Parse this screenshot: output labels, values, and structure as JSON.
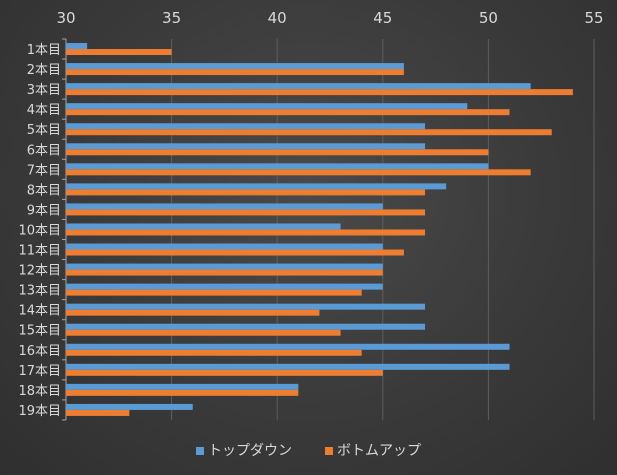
{
  "chart_data": {
    "type": "bar",
    "orientation": "horizontal",
    "categories": [
      "1本目",
      "2本目",
      "3本目",
      "4本目",
      "5本目",
      "6本目",
      "7本目",
      "8本目",
      "9本目",
      "10本目",
      "11本目",
      "12本目",
      "13本目",
      "14本目",
      "15本目",
      "16本目",
      "17本目",
      "18本目",
      "19本目"
    ],
    "series": [
      {
        "name": "トップダウン",
        "color": "#5b9bd5",
        "values": [
          31,
          46,
          52,
          49,
          47,
          47,
          50,
          48,
          45,
          43,
          45,
          45,
          45,
          47,
          47,
          51,
          51,
          41,
          36
        ]
      },
      {
        "name": "ボトムアップ",
        "color": "#ed7d31",
        "values": [
          35,
          46,
          54,
          51,
          53,
          50,
          52,
          47,
          47,
          47,
          46,
          45,
          44,
          42,
          43,
          44,
          45,
          41,
          33
        ]
      }
    ],
    "xlim": [
      30,
      55
    ],
    "xticks": [
      "30",
      "35",
      "40",
      "45",
      "50",
      "55"
    ],
    "x_axis_position": "top",
    "grid": true,
    "legend_position": "bottom",
    "title": "",
    "xlabel": "",
    "ylabel": ""
  }
}
